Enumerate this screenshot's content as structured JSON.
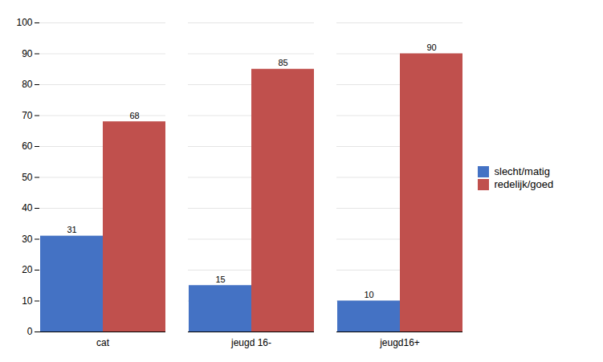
{
  "chart_data": {
    "type": "bar",
    "categories": [
      "cat",
      "jeugd 16-",
      "jeugd16+"
    ],
    "series": [
      {
        "name": "slecht/matig",
        "color": "#4472C4",
        "values": [
          31,
          15,
          10
        ]
      },
      {
        "name": "redelijk/goed",
        "color": "#C0504D",
        "values": [
          68,
          85,
          90
        ]
      }
    ],
    "ylim": [
      0,
      100
    ],
    "yticks": [
      0,
      10,
      20,
      30,
      40,
      50,
      60,
      70,
      80,
      90,
      100
    ],
    "grid": true,
    "legend": "right",
    "data_labels": true
  }
}
